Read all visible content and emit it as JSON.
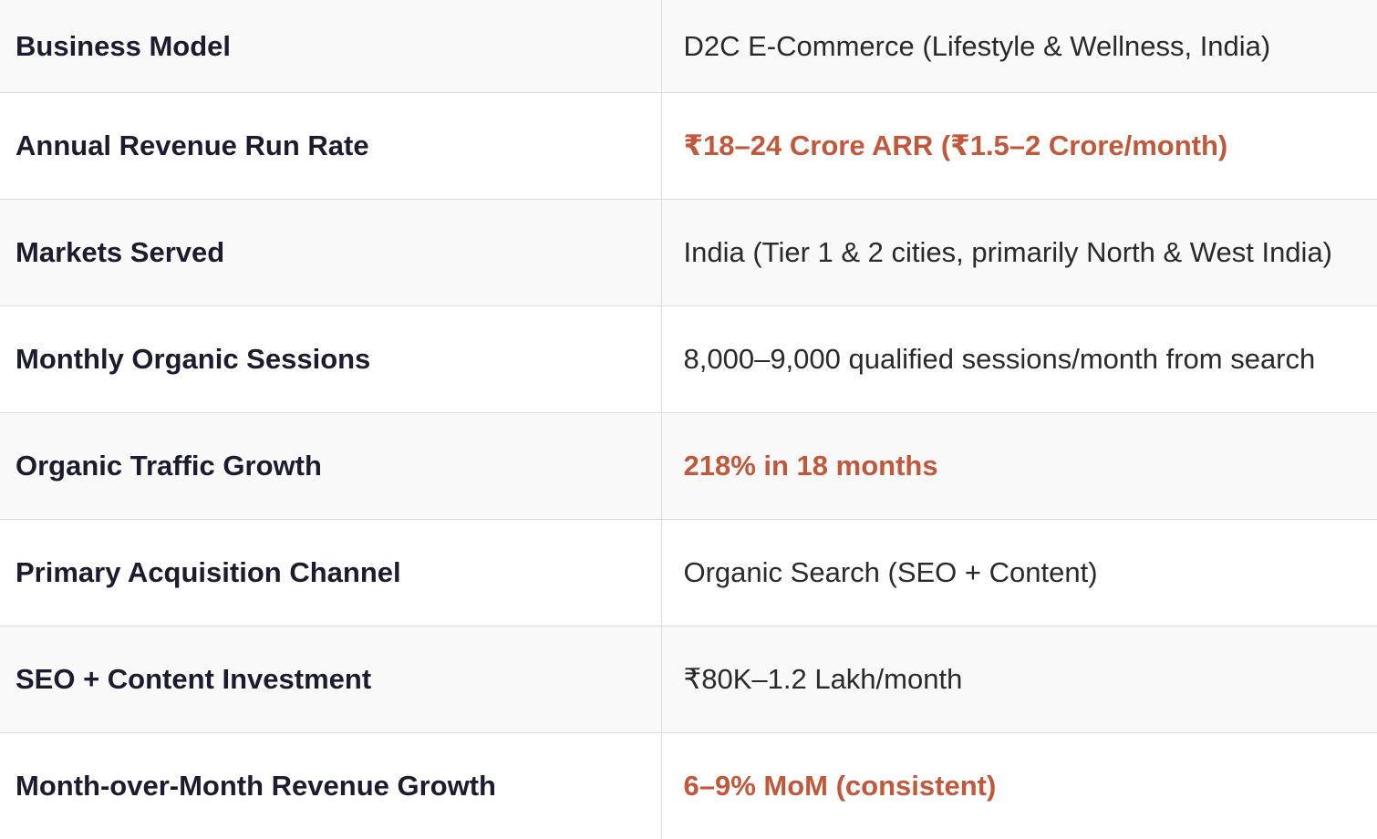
{
  "colors": {
    "label_text": "#1c1c2e",
    "value_text": "#2a2a2a",
    "highlight_text": "#c0583b",
    "row_shade": "#f9f9f9",
    "divider": "#dcdcdc"
  },
  "rows": [
    {
      "label": "Business Model",
      "value": "D2C E-Commerce (Lifestyle & Wellness, India)",
      "highlight": false
    },
    {
      "label": "Annual Revenue Run Rate",
      "value": "₹18–24 Crore ARR (₹1.5–2 Crore/month)",
      "highlight": true
    },
    {
      "label": "Markets Served",
      "value": "India (Tier 1 & 2 cities, primarily North & West India)",
      "highlight": false
    },
    {
      "label": "Monthly Organic Sessions",
      "value": "8,000–9,000 qualified sessions/month from search",
      "highlight": false
    },
    {
      "label": "Organic Traffic Growth",
      "value": "218% in 18 months",
      "highlight": true
    },
    {
      "label": "Primary Acquisition Channel",
      "value": "Organic Search (SEO + Content)",
      "highlight": false
    },
    {
      "label": "SEO + Content Investment",
      "value": "₹80K–1.2 Lakh/month",
      "highlight": false
    },
    {
      "label": "Month-over-Month Revenue Growth",
      "value": "6–9% MoM (consistent)",
      "highlight": true
    }
  ]
}
